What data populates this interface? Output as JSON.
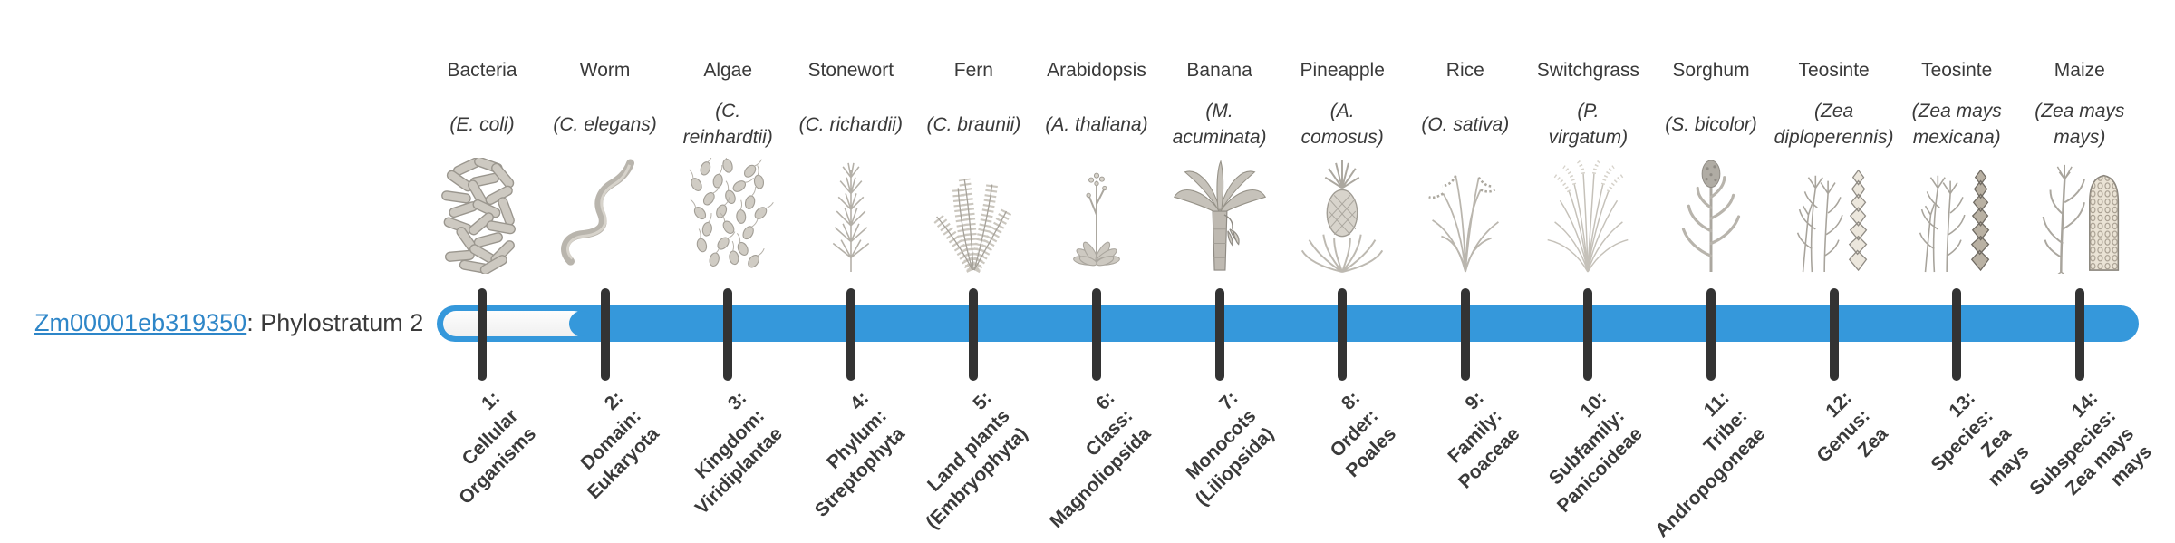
{
  "gene": {
    "id": "Zm00001eb319350",
    "suffix": ": Phylostratum 2",
    "link_color": "#2e86c8"
  },
  "timeline": {
    "bar_color": "#3598db",
    "track_color": "#ffffff",
    "tick_color": "#333333",
    "total_strata": 14,
    "gene_phylostratum": 2
  },
  "chart_data": {
    "type": "timeline",
    "title": "Zm00001eb319350: Phylostratum 2",
    "highlighted_stratum": 2,
    "categories": [
      "1: Cellular Organisms",
      "2: Domain: Eukaryota",
      "3: Kingdom: Viridiplantae",
      "4: Phylum: Streptophyta",
      "5: Land plants (Embryophyta)",
      "6: Class: Magnoliopsida",
      "7: Monocots (Liliopsida)",
      "8: Order: Poales",
      "9: Family: Poaceae",
      "10: Subfamily: Panicoideae",
      "11: Tribe: Andropogoneae",
      "12: Genus: Zea",
      "13: Species: Zea mays",
      "14: Subspecies: Zea mays mays"
    ],
    "representative_species": [
      "Bacteria (E. coli)",
      "Worm (C. elegans)",
      "Algae (C. reinhardtii)",
      "Stonewort (C. richardii)",
      "Fern (C. braunii)",
      "Arabidopsis (A. thaliana)",
      "Banana (M. acuminata)",
      "Pineapple (A. comosus)",
      "Rice (O. sativa)",
      "Switchgrass (P. virgatum)",
      "Sorghum (S. bicolor)",
      "Teosinte (Zea diploperennis)",
      "Teosinte (Zea mays mexicana)",
      "Maize (Zea mays mays)"
    ],
    "bar_filled": [
      false,
      true,
      true,
      true,
      true,
      true,
      true,
      true,
      true,
      true,
      true,
      true,
      true,
      true
    ]
  },
  "organisms": [
    {
      "name": "Bacteria",
      "latin": "(E. coli)",
      "icon": "bacteria-illustration",
      "stratum_label": "1:\nCellular\nOrganisms"
    },
    {
      "name": "Worm",
      "latin": "(C. elegans)",
      "icon": "worm-illustration",
      "stratum_label": "2:\nDomain:\nEukaryota"
    },
    {
      "name": "Algae",
      "latin": "(C.\nreinhardtii)",
      "icon": "algae-illustration",
      "stratum_label": "3:\nKingdom:\nViridiplantae"
    },
    {
      "name": "Stonewort",
      "latin": "(C. richardii)",
      "icon": "stonewort-illustration",
      "stratum_label": "4:\nPhylum:\nStreptophyta"
    },
    {
      "name": "Fern",
      "latin": "(C. braunii)",
      "icon": "fern-illustration",
      "stratum_label": "5:\nLand plants\n(Embryophyta)"
    },
    {
      "name": "Arabidopsis",
      "latin": "(A. thaliana)",
      "icon": "arabidopsis-illustration",
      "stratum_label": "6:\nClass:\nMagnoliopsida"
    },
    {
      "name": "Banana",
      "latin": "(M.\nacuminata)",
      "icon": "banana-illustration",
      "stratum_label": "7:\nMonocots\n(Liliopsida)"
    },
    {
      "name": "Pineapple",
      "latin": "(A.\ncomosus)",
      "icon": "pineapple-illustration",
      "stratum_label": "8:\nOrder:\nPoales"
    },
    {
      "name": "Rice",
      "latin": "(O. sativa)",
      "icon": "rice-illustration",
      "stratum_label": "9:\nFamily:\nPoaceae"
    },
    {
      "name": "Switchgrass",
      "latin": "(P.\nvirgatum)",
      "icon": "switchgrass-illustration",
      "stratum_label": "10:\nSubfamily:\nPanicoideae"
    },
    {
      "name": "Sorghum",
      "latin": "(S. bicolor)",
      "icon": "sorghum-illustration",
      "stratum_label": "11:\nTribe:\nAndropogoneae"
    },
    {
      "name": "Teosinte",
      "latin": "(Zea\ndiploperennis)",
      "icon": "teosinte-diploperennis-illustration",
      "stratum_label": "12:\nGenus:\nZea"
    },
    {
      "name": "Teosinte",
      "latin": "(Zea mays\nmexicana)",
      "icon": "teosinte-mexicana-illustration",
      "stratum_label": "13:\nSpecies:\nZea\nmays"
    },
    {
      "name": "Maize",
      "latin": "(Zea mays\nmays)",
      "icon": "maize-illustration",
      "stratum_label": "14:\nSubspecies:\nZea mays\nmays"
    }
  ]
}
